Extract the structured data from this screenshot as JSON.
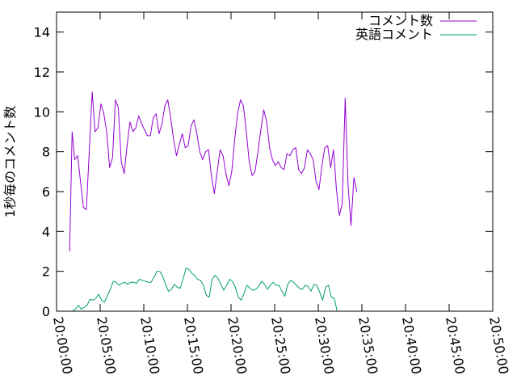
{
  "chart_data": {
    "type": "line",
    "ylabel": "1秒毎のコメント数",
    "xlabel": "",
    "title": "",
    "xlim": [
      "20:00:00",
      "20:50:00"
    ],
    "ylim": [
      0,
      15
    ],
    "x_ticks": [
      "20:00:00",
      "20:05:00",
      "20:10:00",
      "20:15:00",
      "20:20:00",
      "20:25:00",
      "20:30:00",
      "20:35:00",
      "20:40:00",
      "20:45:00",
      "20:50:00"
    ],
    "y_ticks": [
      0,
      2,
      4,
      6,
      8,
      10,
      12,
      14
    ],
    "grid": false,
    "legend_position": "top-right",
    "series": [
      {
        "name": "コメント数",
        "color": "#9400d3",
        "points": [
          [
            "20:01:30",
            3.0
          ],
          [
            "20:01:47",
            9.0
          ],
          [
            "20:02:05",
            7.6
          ],
          [
            "20:02:25",
            7.8
          ],
          [
            "20:02:45",
            6.5
          ],
          [
            "20:03:05",
            5.2
          ],
          [
            "20:03:25",
            5.1
          ],
          [
            "20:03:45",
            8.0
          ],
          [
            "20:04:05",
            11.0
          ],
          [
            "20:04:25",
            9.0
          ],
          [
            "20:04:45",
            9.2
          ],
          [
            "20:05:05",
            10.4
          ],
          [
            "20:05:25",
            9.9
          ],
          [
            "20:05:45",
            9.0
          ],
          [
            "20:06:05",
            7.2
          ],
          [
            "20:06:25",
            7.7
          ],
          [
            "20:06:45",
            10.6
          ],
          [
            "20:07:05",
            10.2
          ],
          [
            "20:07:25",
            7.5
          ],
          [
            "20:07:45",
            6.9
          ],
          [
            "20:08:05",
            8.3
          ],
          [
            "20:08:25",
            9.5
          ],
          [
            "20:08:45",
            9.0
          ],
          [
            "20:09:05",
            9.2
          ],
          [
            "20:09:25",
            9.8
          ],
          [
            "20:09:45",
            9.4
          ],
          [
            "20:10:05",
            9.1
          ],
          [
            "20:10:25",
            8.8
          ],
          [
            "20:10:45",
            8.8
          ],
          [
            "20:11:05",
            9.7
          ],
          [
            "20:11:25",
            9.9
          ],
          [
            "20:11:45",
            8.9
          ],
          [
            "20:12:05",
            9.4
          ],
          [
            "20:12:25",
            10.3
          ],
          [
            "20:12:45",
            10.6
          ],
          [
            "20:13:05",
            9.7
          ],
          [
            "20:13:25",
            8.6
          ],
          [
            "20:13:45",
            7.8
          ],
          [
            "20:14:05",
            8.4
          ],
          [
            "20:14:25",
            8.9
          ],
          [
            "20:14:45",
            8.2
          ],
          [
            "20:15:05",
            8.3
          ],
          [
            "20:15:25",
            9.3
          ],
          [
            "20:15:45",
            9.6
          ],
          [
            "20:16:05",
            8.9
          ],
          [
            "20:16:25",
            8.0
          ],
          [
            "20:16:45",
            7.6
          ],
          [
            "20:17:05",
            8.0
          ],
          [
            "20:17:25",
            8.1
          ],
          [
            "20:17:45",
            6.8
          ],
          [
            "20:18:05",
            5.9
          ],
          [
            "20:18:25",
            7.0
          ],
          [
            "20:18:45",
            8.1
          ],
          [
            "20:19:05",
            7.8
          ],
          [
            "20:19:25",
            6.9
          ],
          [
            "20:19:45",
            6.3
          ],
          [
            "20:20:05",
            7.0
          ],
          [
            "20:20:25",
            8.6
          ],
          [
            "20:20:45",
            9.9
          ],
          [
            "20:21:05",
            10.6
          ],
          [
            "20:21:25",
            10.3
          ],
          [
            "20:21:45",
            9.0
          ],
          [
            "20:22:05",
            7.5
          ],
          [
            "20:22:25",
            6.8
          ],
          [
            "20:22:45",
            7.0
          ],
          [
            "20:23:05",
            8.0
          ],
          [
            "20:23:25",
            9.1
          ],
          [
            "20:23:45",
            10.1
          ],
          [
            "20:24:05",
            9.5
          ],
          [
            "20:24:25",
            8.2
          ],
          [
            "20:24:45",
            7.6
          ],
          [
            "20:25:05",
            7.3
          ],
          [
            "20:25:25",
            7.5
          ],
          [
            "20:25:45",
            7.2
          ],
          [
            "20:26:05",
            7.1
          ],
          [
            "20:26:25",
            7.9
          ],
          [
            "20:26:45",
            7.8
          ],
          [
            "20:27:05",
            8.1
          ],
          [
            "20:27:25",
            8.2
          ],
          [
            "20:27:45",
            7.1
          ],
          [
            "20:28:05",
            6.9
          ],
          [
            "20:28:25",
            7.2
          ],
          [
            "20:28:45",
            8.1
          ],
          [
            "20:29:05",
            7.9
          ],
          [
            "20:29:25",
            7.6
          ],
          [
            "20:29:45",
            6.5
          ],
          [
            "20:30:05",
            6.1
          ],
          [
            "20:30:25",
            7.3
          ],
          [
            "20:30:45",
            8.2
          ],
          [
            "20:31:05",
            8.3
          ],
          [
            "20:31:25",
            7.2
          ],
          [
            "20:31:45",
            8.1
          ],
          [
            "20:32:05",
            6.1
          ],
          [
            "20:32:25",
            4.8
          ],
          [
            "20:32:45",
            5.4
          ],
          [
            "20:33:05",
            10.7
          ],
          [
            "20:33:25",
            6.3
          ],
          [
            "20:33:45",
            4.3
          ],
          [
            "20:34:05",
            6.7
          ],
          [
            "20:34:25",
            6.0
          ]
        ]
      },
      {
        "name": "英語コメント",
        "color": "#009e73",
        "points": [
          [
            "20:01:30",
            0.0
          ],
          [
            "20:01:50",
            0.0
          ],
          [
            "20:02:10",
            0.1
          ],
          [
            "20:02:30",
            0.3
          ],
          [
            "20:02:50",
            0.1
          ],
          [
            "20:03:10",
            0.2
          ],
          [
            "20:03:30",
            0.3
          ],
          [
            "20:03:50",
            0.6
          ],
          [
            "20:04:10",
            0.55
          ],
          [
            "20:04:30",
            0.65
          ],
          [
            "20:04:50",
            0.85
          ],
          [
            "20:05:10",
            0.55
          ],
          [
            "20:05:30",
            0.45
          ],
          [
            "20:05:50",
            0.8
          ],
          [
            "20:06:10",
            1.1
          ],
          [
            "20:06:30",
            1.5
          ],
          [
            "20:06:50",
            1.45
          ],
          [
            "20:07:10",
            1.3
          ],
          [
            "20:07:30",
            1.4
          ],
          [
            "20:07:50",
            1.45
          ],
          [
            "20:08:10",
            1.35
          ],
          [
            "20:08:30",
            1.45
          ],
          [
            "20:08:50",
            1.45
          ],
          [
            "20:09:10",
            1.4
          ],
          [
            "20:09:30",
            1.6
          ],
          [
            "20:09:50",
            1.55
          ],
          [
            "20:10:10",
            1.5
          ],
          [
            "20:10:30",
            1.45
          ],
          [
            "20:10:50",
            1.45
          ],
          [
            "20:11:10",
            1.7
          ],
          [
            "20:11:30",
            2.0
          ],
          [
            "20:11:50",
            2.0
          ],
          [
            "20:12:10",
            1.75
          ],
          [
            "20:12:30",
            1.35
          ],
          [
            "20:12:50",
            1.0
          ],
          [
            "20:13:10",
            1.1
          ],
          [
            "20:13:30",
            1.35
          ],
          [
            "20:13:50",
            1.2
          ],
          [
            "20:14:10",
            1.15
          ],
          [
            "20:14:30",
            1.6
          ],
          [
            "20:14:50",
            2.15
          ],
          [
            "20:15:10",
            2.1
          ],
          [
            "20:15:30",
            1.9
          ],
          [
            "20:15:50",
            1.8
          ],
          [
            "20:16:10",
            1.6
          ],
          [
            "20:16:30",
            1.55
          ],
          [
            "20:16:50",
            1.3
          ],
          [
            "20:17:10",
            0.8
          ],
          [
            "20:17:30",
            0.7
          ],
          [
            "20:17:50",
            1.6
          ],
          [
            "20:18:10",
            1.8
          ],
          [
            "20:18:30",
            1.65
          ],
          [
            "20:18:50",
            1.35
          ],
          [
            "20:19:10",
            1.05
          ],
          [
            "20:19:30",
            1.3
          ],
          [
            "20:19:50",
            1.6
          ],
          [
            "20:20:10",
            1.5
          ],
          [
            "20:20:30",
            1.2
          ],
          [
            "20:20:50",
            0.7
          ],
          [
            "20:21:10",
            0.55
          ],
          [
            "20:21:30",
            0.9
          ],
          [
            "20:21:50",
            1.3
          ],
          [
            "20:22:10",
            1.15
          ],
          [
            "20:22:30",
            1.05
          ],
          [
            "20:22:50",
            1.1
          ],
          [
            "20:23:10",
            1.25
          ],
          [
            "20:23:30",
            1.5
          ],
          [
            "20:23:50",
            1.35
          ],
          [
            "20:24:10",
            1.1
          ],
          [
            "20:24:30",
            1.3
          ],
          [
            "20:24:50",
            1.45
          ],
          [
            "20:25:10",
            1.3
          ],
          [
            "20:25:30",
            1.3
          ],
          [
            "20:25:50",
            1.0
          ],
          [
            "20:26:10",
            0.75
          ],
          [
            "20:26:30",
            1.35
          ],
          [
            "20:26:50",
            1.55
          ],
          [
            "20:27:10",
            1.45
          ],
          [
            "20:27:30",
            1.3
          ],
          [
            "20:27:50",
            1.15
          ],
          [
            "20:28:10",
            1.1
          ],
          [
            "20:28:30",
            1.3
          ],
          [
            "20:28:50",
            1.25
          ],
          [
            "20:29:10",
            1.0
          ],
          [
            "20:29:30",
            1.35
          ],
          [
            "20:29:50",
            1.3
          ],
          [
            "20:30:10",
            0.95
          ],
          [
            "20:30:30",
            0.55
          ],
          [
            "20:30:50",
            1.2
          ],
          [
            "20:31:10",
            1.3
          ],
          [
            "20:31:30",
            0.7
          ],
          [
            "20:31:50",
            0.65
          ],
          [
            "20:32:10",
            0.0
          ]
        ]
      }
    ]
  }
}
